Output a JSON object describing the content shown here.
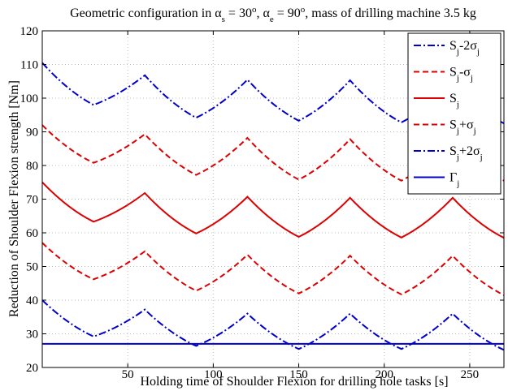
{
  "chart_data": {
    "type": "line",
    "title": {
      "prefix": "Geometric configuration in ",
      "alpha": "α",
      "sub_s": "s",
      "eq1": " = 30",
      "deg": "o",
      "comma": ", ",
      "sub_e": "e",
      "eq2": " = 90",
      "suffix": ", mass of drilling machine 3.5 kg"
    },
    "xlabel": "Holding time of Shoulder Flexion for drilling hole tasks [s]",
    "ylabel": "Reduction of Shoulder Flexion strength [Nm]",
    "xlim": [
      0,
      270
    ],
    "ylim": [
      20,
      120
    ],
    "xticks": [
      50,
      100,
      150,
      200,
      250
    ],
    "yticks": [
      20,
      30,
      40,
      50,
      60,
      70,
      80,
      90,
      100,
      110,
      120
    ],
    "grid": true,
    "legend_position": "top-right",
    "series": [
      {
        "legend": {
          "base": "S",
          "sub": "j",
          "suffix": "-2σ",
          "suffix_sub": "j"
        },
        "color": "#0000cc",
        "style": "dashdot",
        "x": [
          0,
          30,
          60,
          90,
          120,
          150,
          180,
          210,
          240,
          270
        ],
        "y": [
          110.5,
          98,
          106.8,
          94.2,
          105.5,
          93.3,
          105.3,
          92.8,
          104.8,
          92.5
        ]
      },
      {
        "legend": {
          "base": "S",
          "sub": "j",
          "suffix": "-σ",
          "suffix_sub": "j"
        },
        "color": "#dd0000",
        "style": "dashed",
        "x": [
          0,
          30,
          60,
          90,
          120,
          150,
          180,
          210,
          240,
          270
        ],
        "y": [
          92,
          80.8,
          89.3,
          77.2,
          88.2,
          75.8,
          87.8,
          75.5,
          87.5,
          75.5
        ]
      },
      {
        "legend": {
          "base": "S",
          "sub": "j",
          "suffix": "",
          "suffix_sub": ""
        },
        "color": "#dd0000",
        "style": "solid",
        "x": [
          0,
          30,
          60,
          90,
          120,
          150,
          180,
          210,
          240,
          270
        ],
        "y": [
          75,
          63.3,
          71.8,
          59.8,
          70.7,
          58.8,
          70.4,
          58.6,
          70.4,
          58.5
        ]
      },
      {
        "legend": {
          "base": "S",
          "sub": "j",
          "suffix": "+σ",
          "suffix_sub": "j"
        },
        "color": "#dd0000",
        "style": "dashed",
        "x": [
          0,
          30,
          60,
          90,
          120,
          150,
          180,
          210,
          240,
          270
        ],
        "y": [
          57,
          46.2,
          54.5,
          42.8,
          53.5,
          42,
          53.2,
          41.7,
          53.2,
          41.5
        ]
      },
      {
        "legend": {
          "base": "S",
          "sub": "j",
          "suffix": "+2σ",
          "suffix_sub": "j"
        },
        "color": "#0000cc",
        "style": "dashdot",
        "x": [
          0,
          30,
          60,
          90,
          120,
          150,
          180,
          210,
          240,
          270
        ],
        "y": [
          40,
          29.2,
          37.2,
          26.4,
          36,
          25.5,
          36,
          25.5,
          36,
          25.2
        ]
      },
      {
        "legend": {
          "base": "Γ",
          "sub": "j",
          "suffix": "",
          "suffix_sub": ""
        },
        "color": "#0000cc",
        "style": "solid",
        "x": [
          0,
          270
        ],
        "y": [
          27,
          27
        ]
      }
    ]
  }
}
